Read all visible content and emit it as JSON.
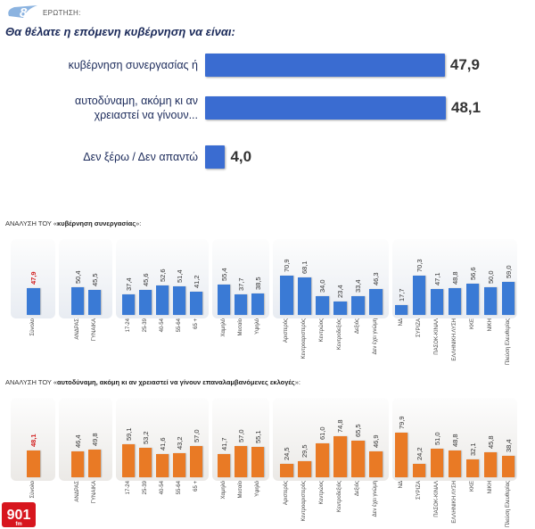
{
  "header": {
    "question_number": "8",
    "question_label": "ΕΡΩΤΗΣΗ:",
    "question": "Θα θέλατε η επόμενη κυβέρνηση να είναι:"
  },
  "logo": {
    "text": "901",
    "sub": "fm"
  },
  "colors": {
    "main_bar": "#3a6cd1",
    "blue_bar": "#3a7ad5",
    "orange_bar": "#e97a25",
    "highlight": "#d11c1c"
  },
  "chart_data": [
    {
      "type": "bar",
      "orientation": "horizontal",
      "title": "Θα θέλατε η επόμενη κυβέρνηση να είναι:",
      "categories": [
        [
          "κυβέρνηση συνεργασίας ή"
        ],
        [
          "αυτοδύναμη, ακόμη κι αν",
          "χρειαστεί να γίνουν..."
        ],
        [
          "Δεν ξέρω / Δεν απαντώ"
        ]
      ],
      "values": [
        "47,9",
        "48,1",
        "4,0"
      ],
      "numeric_values": [
        47.9,
        48.1,
        4.0
      ]
    },
    {
      "type": "bar",
      "title_prefix": "ΑΝΑΛΥΣΗ ΤΟΥ «",
      "title_bold": "κυβέρνηση συνεργασίας",
      "title_suffix": "»:",
      "groups": [
        {
          "categories": [
            "Σύνολο"
          ],
          "values": [
            "47,9"
          ],
          "numeric_values": [
            47.9
          ],
          "highlight": [
            0
          ]
        },
        {
          "categories": [
            "ΑΝΔΡΑΣ",
            "ΓΥΝΑΙΚΑ"
          ],
          "values": [
            "50,4",
            "45,5"
          ],
          "numeric_values": [
            50.4,
            45.5
          ]
        },
        {
          "categories": [
            "17-24",
            "25-39",
            "40-54",
            "55-64",
            "65 +"
          ],
          "values": [
            "37,4",
            "45,6",
            "52,6",
            "51,4",
            "41,2"
          ],
          "numeric_values": [
            37.4,
            45.6,
            52.6,
            51.4,
            41.2
          ]
        },
        {
          "categories": [
            "Χαμηλό",
            "Μεσαίο",
            "Υψηλό"
          ],
          "values": [
            "55,4",
            "37,7",
            "38,5"
          ],
          "numeric_values": [
            55.4,
            37.7,
            38.5
          ]
        },
        {
          "categories": [
            "Αριστερός",
            "Κεντροαριστερός",
            "Κεντρώος",
            "Κεντροδεξιός",
            "Δεξιός",
            "Δεν έχει γνώμη"
          ],
          "values": [
            "70,9",
            "68,1",
            "34,0",
            "23,4",
            "33,4",
            "46,3"
          ],
          "numeric_values": [
            70.9,
            68.1,
            34.0,
            23.4,
            33.4,
            46.3
          ]
        },
        {
          "categories": [
            "ΝΔ",
            "ΣΥΡΙΖΑ",
            "ΠΑΣΟΚ-ΚΙΝΑΛ",
            "ΕΛΛΗΝΙΚΗ ΛΥΣΗ",
            "ΚΚΕ",
            "ΝΙΚΗ",
            "Πλεύση Ελευθερίας"
          ],
          "values": [
            "17,7",
            "70,3",
            "47,1",
            "48,8",
            "56,6",
            "50,0",
            "59,0"
          ],
          "numeric_values": [
            17.7,
            70.3,
            47.1,
            48.8,
            56.6,
            50.0,
            59.0
          ]
        }
      ],
      "ylim": [
        0,
        100
      ]
    },
    {
      "type": "bar",
      "title_prefix": "ΑΝΑΛΥΣΗ ΤΟΥ «",
      "title_bold": "αυτοδύναμη, ακόμη κι αν χρειαστεί να γίνουν επαναλαμβανόμενες εκλογές",
      "title_suffix": "»:",
      "groups": [
        {
          "categories": [
            "Σύνολο"
          ],
          "values": [
            "48,1"
          ],
          "numeric_values": [
            48.1
          ],
          "highlight": [
            0
          ]
        },
        {
          "categories": [
            "ΑΝΔΡΑΣ",
            "ΓΥΝΑΙΚΑ"
          ],
          "values": [
            "46,4",
            "49,8"
          ],
          "numeric_values": [
            46.4,
            49.8
          ]
        },
        {
          "categories": [
            "17-24",
            "25-39",
            "40-54",
            "55-64",
            "65 +"
          ],
          "values": [
            "59,1",
            "53,2",
            "41,6",
            "43,2",
            "57,0"
          ],
          "numeric_values": [
            59.1,
            53.2,
            41.6,
            43.2,
            57.0
          ]
        },
        {
          "categories": [
            "Χαμηλό",
            "Μεσαίο",
            "Υψηλό"
          ],
          "values": [
            "41,7",
            "57,0",
            "55,1"
          ],
          "numeric_values": [
            41.7,
            57.0,
            55.1
          ]
        },
        {
          "categories": [
            "Αριστερός",
            "Κεντροαριστερός",
            "Κεντρώος",
            "Κεντροδεξιός",
            "Δεξιός",
            "Δεν έχει γνώμη"
          ],
          "values": [
            "24,5",
            "29,5",
            "61,0",
            "74,8",
            "65,5",
            "46,9"
          ],
          "numeric_values": [
            24.5,
            29.5,
            61.0,
            74.8,
            65.5,
            46.9
          ]
        },
        {
          "categories": [
            "ΝΔ",
            "ΣΥΡΙΖΑ",
            "ΠΑΣΟΚ-ΚΙΝΑΛ",
            "ΕΛΛΗΝΙΚΗ ΛΥΣΗ",
            "ΚΚΕ",
            "ΝΙΚΗ",
            "Πλεύση Ελευθερίας"
          ],
          "values": [
            "79,9",
            "24,2",
            "51,0",
            "48,8",
            "32,1",
            "45,8",
            "38,4"
          ],
          "numeric_values": [
            79.9,
            24.2,
            51.0,
            48.8,
            32.1,
            45.8,
            38.4
          ]
        }
      ],
      "ylim": [
        0,
        100
      ]
    }
  ]
}
